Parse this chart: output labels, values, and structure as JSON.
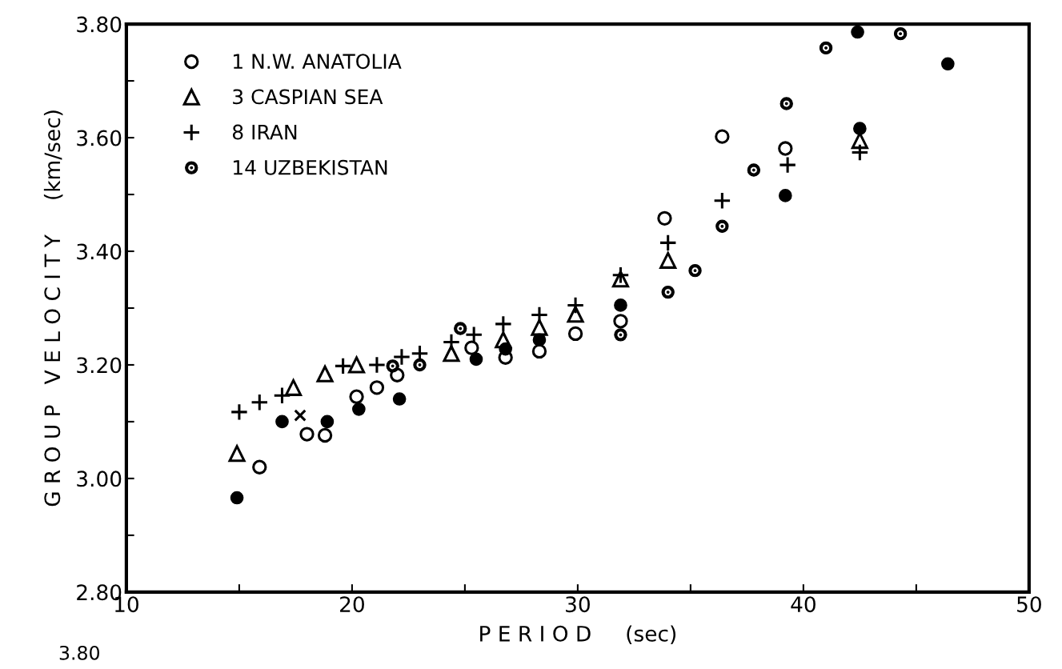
{
  "chart_data": {
    "type": "scatter",
    "xlabel": "P E R I O D     (sec)",
    "ylabel": "G R O U P   V E L O C I T Y     (km/sec)",
    "xlim": [
      10,
      50
    ],
    "ylim": [
      2.8,
      3.8
    ],
    "xticks": [
      10,
      {
        "value": 15,
        "label": null
      },
      20,
      {
        "value": 25,
        "label": null
      },
      30,
      {
        "value": 35,
        "label": null
      },
      40,
      {
        "value": 45,
        "label": null
      },
      50
    ],
    "yticks": [
      {
        "value": 2.8,
        "label": "2.80"
      },
      {
        "value": 2.9,
        "label": null
      },
      {
        "value": 3.0,
        "label": "3.00"
      },
      {
        "value": 3.1,
        "label": null
      },
      {
        "value": 3.2,
        "label": "3.20"
      },
      {
        "value": 3.3,
        "label": null
      },
      {
        "value": 3.4,
        "label": "3.40"
      },
      {
        "value": 3.5,
        "label": null
      },
      {
        "value": 3.6,
        "label": "3.60"
      },
      {
        "value": 3.7,
        "label": null
      },
      {
        "value": 3.8,
        "label": "3.80"
      }
    ],
    "grid": false,
    "legend": "top left",
    "series": [
      {
        "name": "1 N.W. ANATOLIA",
        "color": "#000000",
        "marker": "circle",
        "x": [
          15.9,
          18.0,
          18.8,
          20.2,
          21.1,
          22.0,
          25.3,
          26.8,
          28.3,
          29.9,
          31.9,
          33.85,
          36.4,
          39.2
        ],
        "values": [
          3.02,
          3.078,
          3.076,
          3.144,
          3.16,
          3.182,
          3.23,
          3.213,
          3.224,
          3.255,
          3.277,
          3.458,
          3.602,
          3.581
        ]
      },
      {
        "name": "3 CASPIAN SEA",
        "color": "#000000",
        "marker": "triangle",
        "x": [
          14.9,
          17.4,
          18.8,
          20.2,
          24.4,
          26.7,
          28.3,
          29.9,
          31.9,
          34.0,
          42.5
        ],
        "values": [
          3.044,
          3.16,
          3.184,
          3.2,
          3.22,
          3.244,
          3.266,
          3.289,
          3.351,
          3.384,
          3.595
        ]
      },
      {
        "name": "8 IRAN",
        "color": "#000000",
        "marker": "cross",
        "x": [
          15.0,
          15.9,
          16.9,
          19.6,
          21.1,
          22.2,
          23.0,
          24.4,
          25.4,
          26.7,
          28.3,
          29.9,
          31.9,
          34.0,
          36.4,
          39.3,
          42.5
        ],
        "values": [
          3.117,
          3.134,
          3.146,
          3.198,
          3.2,
          3.214,
          3.22,
          3.24,
          3.253,
          3.272,
          3.288,
          3.305,
          3.358,
          3.415,
          3.489,
          3.552,
          3.574
        ]
      },
      {
        "name": "14 UZBEKISTAN",
        "color": "#000000",
        "marker": "dotted circle",
        "x": [
          21.8,
          23.0,
          24.8,
          31.9,
          34.0,
          35.2,
          36.4,
          37.8,
          39.25,
          41.0,
          44.3
        ],
        "values": [
          3.198,
          3.2,
          3.264,
          3.253,
          3.328,
          3.366,
          3.444,
          3.543,
          3.66,
          3.758,
          3.783
        ]
      },
      {
        "color": "#000000",
        "marker": "filled circle",
        "x": [
          14.9,
          16.9,
          18.9,
          20.3,
          22.1,
          25.5,
          26.8,
          28.3,
          31.9,
          39.2,
          42.5,
          42.4,
          46.4
        ],
        "values": [
          2.966,
          3.1,
          3.1,
          3.122,
          3.14,
          3.21,
          3.228,
          3.244,
          3.305,
          3.498,
          3.616,
          3.786,
          3.73
        ]
      },
      {
        "color": "#000000",
        "marker": "x",
        "x": [
          17.7
        ],
        "values": [
          3.111
        ]
      }
    ],
    "annotations": [
      "3.80"
    ]
  }
}
